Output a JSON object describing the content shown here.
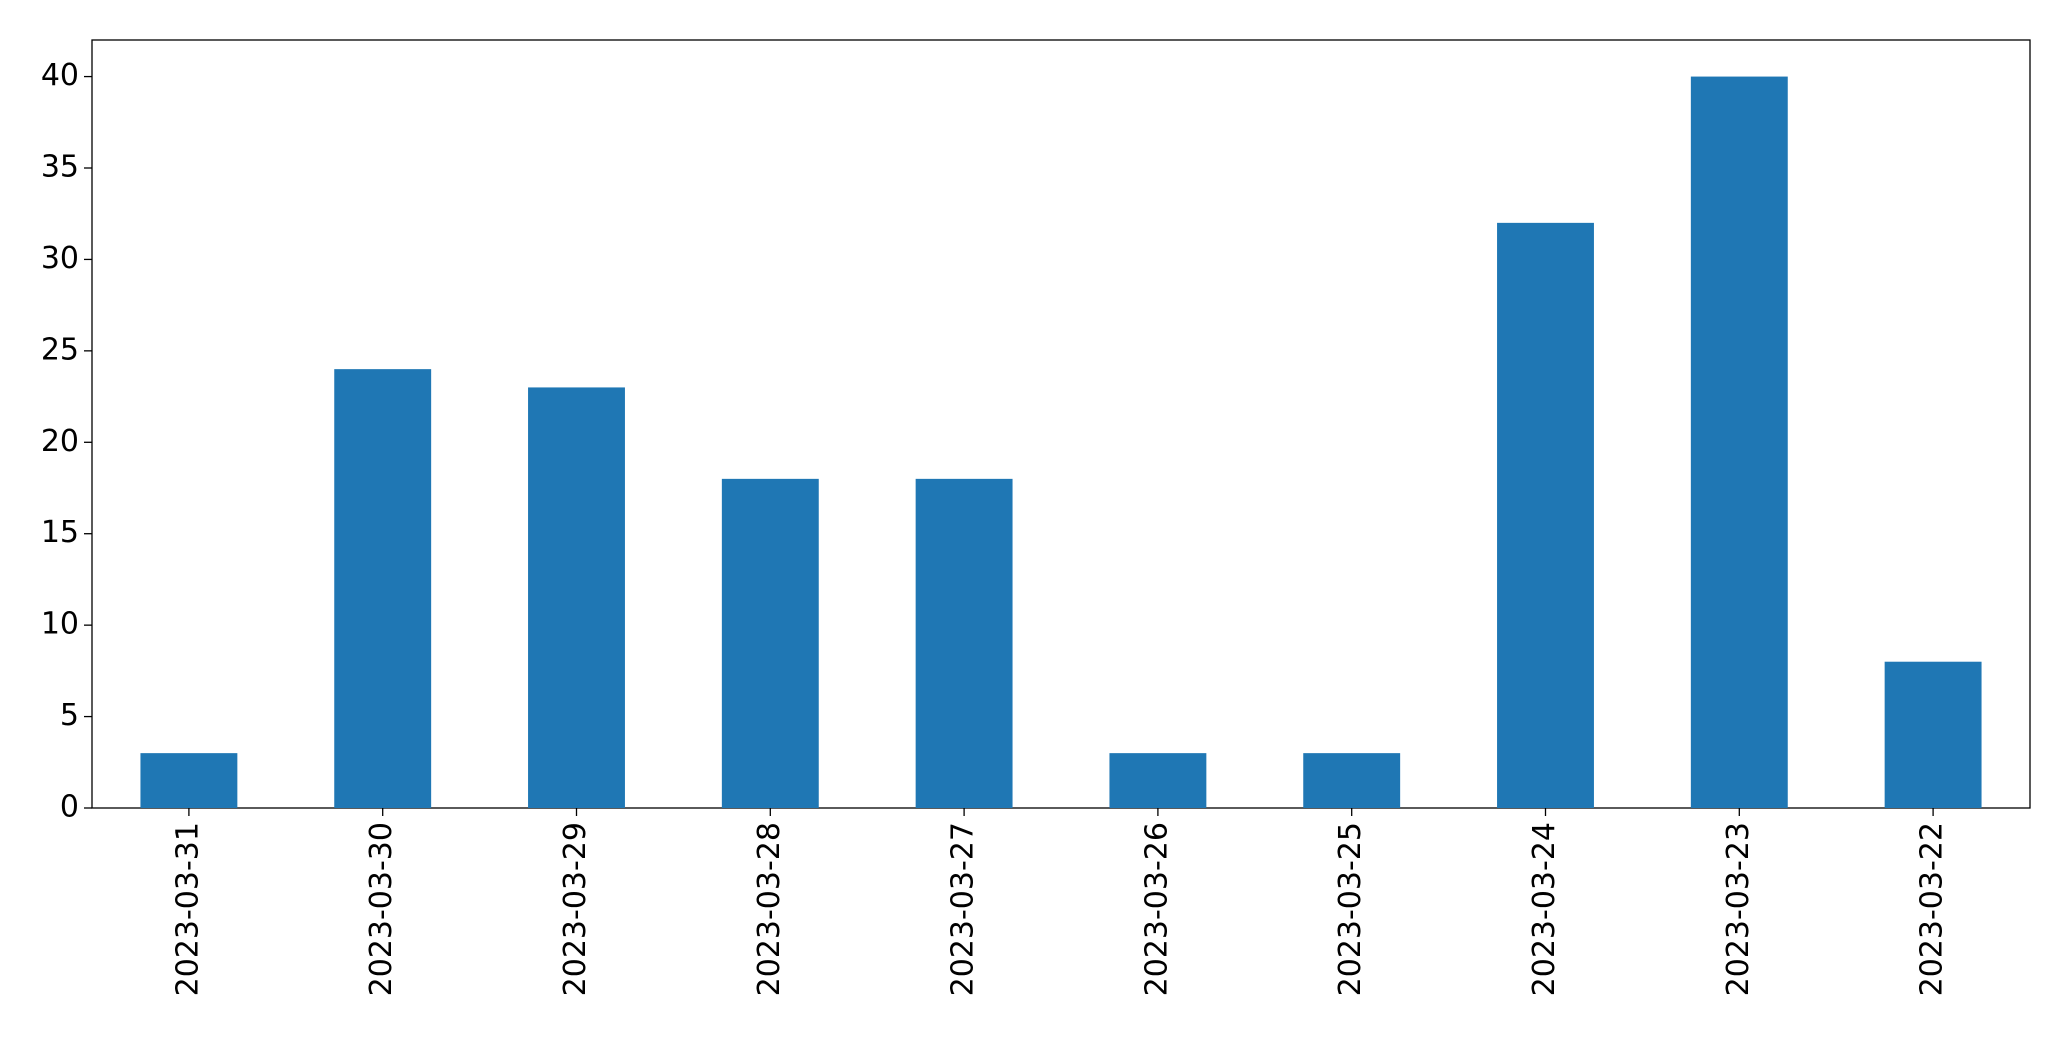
{
  "chart_data": {
    "type": "bar",
    "categories": [
      "2023-03-31",
      "2023-03-30",
      "2023-03-29",
      "2023-03-28",
      "2023-03-27",
      "2023-03-26",
      "2023-03-25",
      "2023-03-24",
      "2023-03-23",
      "2023-03-22"
    ],
    "values": [
      3,
      24,
      23,
      18,
      18,
      3,
      3,
      32,
      40,
      8
    ],
    "color": "#1f77b4",
    "ylim": [
      0,
      42
    ],
    "yticks": [
      0,
      5,
      10,
      15,
      20,
      25,
      30,
      35,
      40
    ],
    "grid": false
  }
}
